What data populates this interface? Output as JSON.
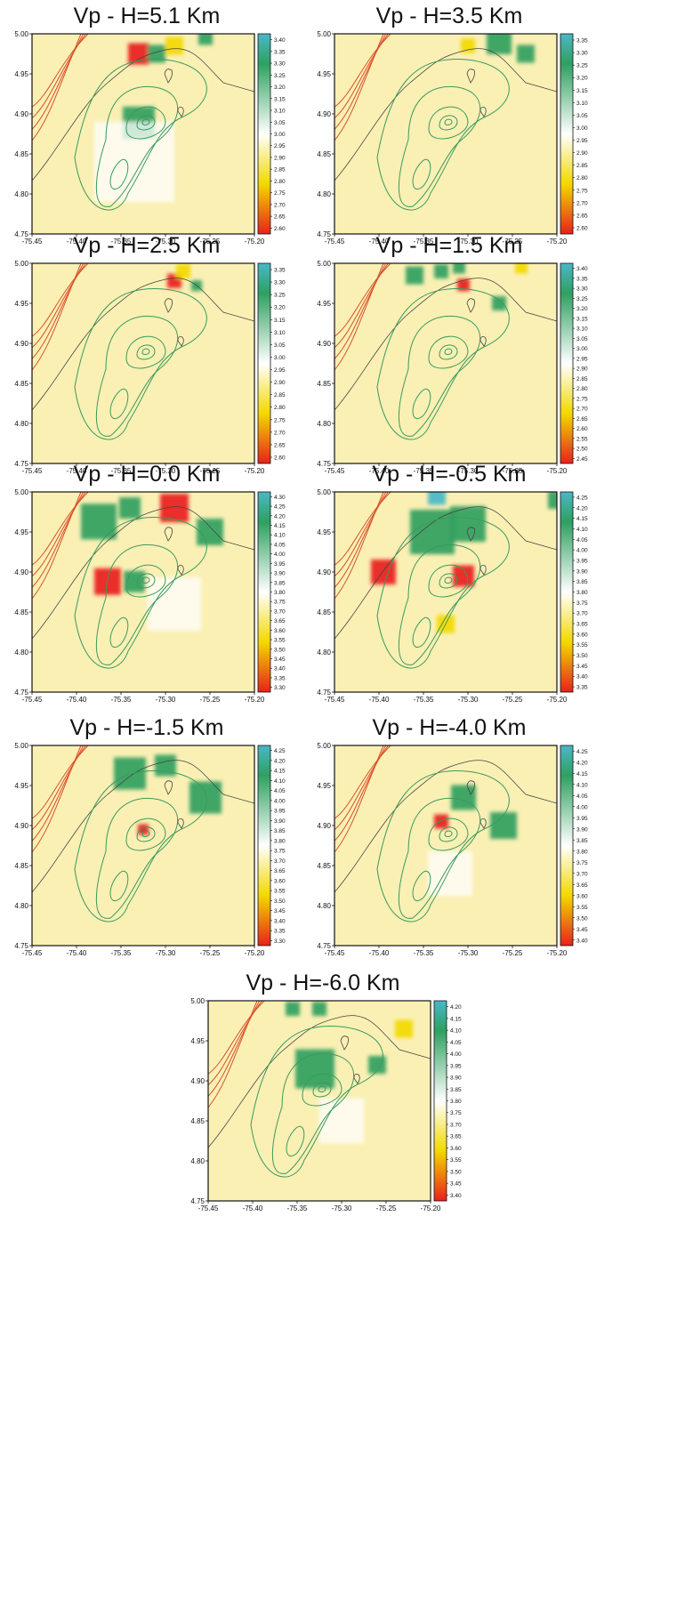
{
  "colors": {
    "low": "#e8211c",
    "mid_low": "#f2d900",
    "pale": "#faf0b4",
    "neutral": "#ffffff",
    "high": "#2fa060",
    "top": "#4bb7c8",
    "contour_green": "#3a9a5e",
    "contour_red": "#d9502c",
    "coastline": "#444444",
    "frame": "#111111"
  },
  "chart_data": [
    {
      "type": "heatmap",
      "title": "Vp - H=5.1 Km",
      "x_ticks": [
        "-75.45",
        "-75.40",
        "-75.35",
        "-75.30",
        "-75.25",
        "-75.20"
      ],
      "y_ticks": [
        "4.75",
        "4.80",
        "4.85",
        "4.90",
        "4.95",
        "5.00"
      ],
      "xlim": [
        -75.45,
        -75.2
      ],
      "ylim": [
        4.75,
        5.0
      ],
      "colorbar": [
        "3.40",
        "3.35",
        "3.30",
        "3.25",
        "3.20",
        "3.15",
        "3.10",
        "3.05",
        "3.00",
        "2.95",
        "2.90",
        "2.85",
        "2.80",
        "2.75",
        "2.70",
        "2.65",
        "2.60"
      ],
      "anomalies": [
        {
          "lon": -75.33,
          "lat": 4.889,
          "r": 0.018,
          "level": "high"
        },
        {
          "lon": -75.33,
          "lat": 4.975,
          "r": 0.012,
          "level": "low"
        },
        {
          "lon": -75.31,
          "lat": 4.975,
          "r": 0.01,
          "level": "high"
        },
        {
          "lon": -75.29,
          "lat": 4.985,
          "r": 0.01,
          "level": "mid_low"
        },
        {
          "lon": -75.255,
          "lat": 4.995,
          "r": 0.008,
          "level": "high"
        },
        {
          "lon": -75.335,
          "lat": 4.84,
          "r": 0.045,
          "level": "neutral"
        }
      ]
    },
    {
      "type": "heatmap",
      "title": "Vp - H=3.5 Km",
      "x_ticks": [
        "-75.45",
        "-75.40",
        "-75.35",
        "-75.30",
        "-75.25",
        "-75.20"
      ],
      "y_ticks": [
        "4.75",
        "4.80",
        "4.85",
        "4.90",
        "4.95",
        "5.00"
      ],
      "xlim": [
        -75.45,
        -75.2
      ],
      "ylim": [
        4.75,
        5.0
      ],
      "colorbar": [
        "3.35",
        "3.30",
        "3.25",
        "3.20",
        "3.15",
        "3.10",
        "3.05",
        "3.00",
        "2.95",
        "2.90",
        "2.85",
        "2.80",
        "2.75",
        "2.70",
        "2.65",
        "2.60"
      ],
      "anomalies": [
        {
          "lon": -75.265,
          "lat": 4.99,
          "r": 0.014,
          "level": "high"
        },
        {
          "lon": -75.235,
          "lat": 4.975,
          "r": 0.01,
          "level": "high"
        },
        {
          "lon": -75.3,
          "lat": 4.985,
          "r": 0.008,
          "level": "mid_low"
        }
      ]
    },
    {
      "type": "heatmap",
      "title": "Vp - H=2.5 Km",
      "x_ticks": [
        "-75.45",
        "-75.40",
        "-75.35",
        "-75.30",
        "-75.25",
        "-75.20"
      ],
      "y_ticks": [
        "4.75",
        "4.80",
        "4.85",
        "4.90",
        "4.95",
        "5.00"
      ],
      "xlim": [
        -75.45,
        -75.2
      ],
      "ylim": [
        4.75,
        5.0
      ],
      "colorbar": [
        "3.35",
        "3.30",
        "3.25",
        "3.20",
        "3.15",
        "3.10",
        "3.05",
        "3.00",
        "2.95",
        "2.90",
        "2.85",
        "2.80",
        "2.75",
        "2.70",
        "2.65",
        "2.60"
      ],
      "anomalies": [
        {
          "lon": -75.29,
          "lat": 4.978,
          "r": 0.008,
          "level": "low"
        },
        {
          "lon": -75.28,
          "lat": 4.99,
          "r": 0.008,
          "level": "mid_low"
        },
        {
          "lon": -75.265,
          "lat": 4.972,
          "r": 0.006,
          "level": "high"
        }
      ]
    },
    {
      "type": "heatmap",
      "title": "Vp - H=1.5 Km",
      "x_ticks": [
        "-75.45",
        "-75.40",
        "-75.35",
        "-75.30",
        "-75.25",
        "-75.20"
      ],
      "y_ticks": [
        "4.75",
        "4.80",
        "4.85",
        "4.90",
        "4.95",
        "5.00"
      ],
      "xlim": [
        -75.45,
        -75.2
      ],
      "ylim": [
        4.75,
        5.0
      ],
      "colorbar": [
        "3.40",
        "3.35",
        "3.30",
        "3.25",
        "3.20",
        "3.15",
        "3.10",
        "3.05",
        "3.00",
        "2.95",
        "2.90",
        "2.85",
        "2.80",
        "2.75",
        "2.70",
        "2.65",
        "2.60",
        "2.55",
        "2.50",
        "2.45"
      ],
      "anomalies": [
        {
          "lon": -75.36,
          "lat": 4.985,
          "r": 0.01,
          "level": "high"
        },
        {
          "lon": -75.33,
          "lat": 4.99,
          "r": 0.008,
          "level": "high"
        },
        {
          "lon": -75.305,
          "lat": 4.973,
          "r": 0.007,
          "level": "low"
        },
        {
          "lon": -75.265,
          "lat": 4.95,
          "r": 0.008,
          "level": "high"
        },
        {
          "lon": -75.24,
          "lat": 4.995,
          "r": 0.007,
          "level": "mid_low"
        },
        {
          "lon": -75.31,
          "lat": 4.995,
          "r": 0.007,
          "level": "high"
        }
      ]
    },
    {
      "type": "heatmap",
      "title": "Vp - H=0.0 Km",
      "x_ticks": [
        "-75.45",
        "-75.40",
        "-75.35",
        "-75.30",
        "-75.25",
        "-75.20"
      ],
      "y_ticks": [
        "4.75",
        "4.80",
        "4.85",
        "4.90",
        "4.95",
        "5.00"
      ],
      "xlim": [
        -75.45,
        -75.2
      ],
      "ylim": [
        4.75,
        5.0
      ],
      "colorbar": [
        "4.30",
        "4.25",
        "4.20",
        "4.15",
        "4.10",
        "4.05",
        "4.00",
        "3.95",
        "3.90",
        "3.85",
        "3.80",
        "3.75",
        "3.70",
        "3.65",
        "3.60",
        "3.55",
        "3.50",
        "3.45",
        "3.40",
        "3.35",
        "3.30"
      ],
      "anomalies": [
        {
          "lon": -75.375,
          "lat": 4.963,
          "r": 0.02,
          "level": "high"
        },
        {
          "lon": -75.34,
          "lat": 4.98,
          "r": 0.012,
          "level": "high"
        },
        {
          "lon": -75.29,
          "lat": 4.98,
          "r": 0.016,
          "level": "low"
        },
        {
          "lon": -75.25,
          "lat": 4.95,
          "r": 0.015,
          "level": "high"
        },
        {
          "lon": -75.365,
          "lat": 4.888,
          "r": 0.015,
          "level": "low"
        },
        {
          "lon": -75.335,
          "lat": 4.888,
          "r": 0.012,
          "level": "high"
        },
        {
          "lon": -75.29,
          "lat": 4.86,
          "r": 0.03,
          "level": "neutral"
        }
      ]
    },
    {
      "type": "heatmap",
      "title": "Vp - H=-0.5 Km",
      "x_ticks": [
        "-75.45",
        "-75.40",
        "-75.35",
        "-75.30",
        "-75.25",
        "-75.20"
      ],
      "y_ticks": [
        "4.75",
        "4.80",
        "4.85",
        "4.90",
        "4.95",
        "5.00"
      ],
      "xlim": [
        -75.45,
        -75.2
      ],
      "ylim": [
        4.75,
        5.0
      ],
      "colorbar": [
        "4.25",
        "4.20",
        "4.15",
        "4.10",
        "4.05",
        "4.00",
        "3.95",
        "3.90",
        "3.85",
        "3.80",
        "3.75",
        "3.70",
        "3.65",
        "3.60",
        "3.55",
        "3.50",
        "3.45",
        "3.40",
        "3.35"
      ],
      "anomalies": [
        {
          "lon": -75.34,
          "lat": 4.95,
          "r": 0.025,
          "level": "high"
        },
        {
          "lon": -75.3,
          "lat": 4.96,
          "r": 0.02,
          "level": "high"
        },
        {
          "lon": -75.395,
          "lat": 4.9,
          "r": 0.014,
          "level": "low"
        },
        {
          "lon": -75.305,
          "lat": 4.895,
          "r": 0.012,
          "level": "low"
        },
        {
          "lon": -75.325,
          "lat": 4.835,
          "r": 0.01,
          "level": "mid_low"
        },
        {
          "lon": -75.2,
          "lat": 4.99,
          "r": 0.01,
          "level": "high"
        },
        {
          "lon": -75.335,
          "lat": 4.995,
          "r": 0.01,
          "level": "top"
        }
      ]
    },
    {
      "type": "heatmap",
      "title": "Vp - H=-1.5 Km",
      "x_ticks": [
        "-75.45",
        "-75.40",
        "-75.35",
        "-75.30",
        "-75.25",
        "-75.20"
      ],
      "y_ticks": [
        "4.75",
        "4.80",
        "4.85",
        "4.90",
        "4.95",
        "5.00"
      ],
      "xlim": [
        -75.45,
        -75.2
      ],
      "ylim": [
        4.75,
        5.0
      ],
      "colorbar": [
        "4.25",
        "4.20",
        "4.15",
        "4.10",
        "4.05",
        "4.00",
        "3.95",
        "3.90",
        "3.85",
        "3.80",
        "3.75",
        "3.70",
        "3.65",
        "3.60",
        "3.55",
        "3.50",
        "3.45",
        "3.40",
        "3.35",
        "3.30"
      ],
      "anomalies": [
        {
          "lon": -75.34,
          "lat": 4.965,
          "r": 0.018,
          "level": "high"
        },
        {
          "lon": -75.3,
          "lat": 4.975,
          "r": 0.012,
          "level": "high"
        },
        {
          "lon": -75.255,
          "lat": 4.935,
          "r": 0.018,
          "level": "high"
        },
        {
          "lon": -75.325,
          "lat": 4.895,
          "r": 0.006,
          "level": "low"
        }
      ]
    },
    {
      "type": "heatmap",
      "title": "Vp - H=-4.0 Km",
      "x_ticks": [
        "-75.45",
        "-75.40",
        "-75.35",
        "-75.30",
        "-75.25",
        "-75.20"
      ],
      "y_ticks": [
        "4.75",
        "4.80",
        "4.85",
        "4.90",
        "4.95",
        "5.00"
      ],
      "xlim": [
        -75.45,
        -75.2
      ],
      "ylim": [
        4.75,
        5.0
      ],
      "colorbar": [
        "4.25",
        "4.20",
        "4.15",
        "4.10",
        "4.05",
        "4.00",
        "3.95",
        "3.90",
        "3.85",
        "3.80",
        "3.75",
        "3.70",
        "3.65",
        "3.60",
        "3.55",
        "3.50",
        "3.45",
        "3.40"
      ],
      "anomalies": [
        {
          "lon": -75.33,
          "lat": 4.905,
          "r": 0.008,
          "level": "low"
        },
        {
          "lon": -75.305,
          "lat": 4.935,
          "r": 0.014,
          "level": "high"
        },
        {
          "lon": -75.26,
          "lat": 4.9,
          "r": 0.015,
          "level": "high"
        },
        {
          "lon": -75.32,
          "lat": 4.84,
          "r": 0.025,
          "level": "neutral"
        }
      ]
    },
    {
      "type": "heatmap",
      "title": "Vp - H=-6.0 Km",
      "x_ticks": [
        "-75.45",
        "-75.40",
        "-75.35",
        "-75.30",
        "-75.25",
        "-75.20"
      ],
      "y_ticks": [
        "4.75",
        "4.80",
        "4.85",
        "4.90",
        "4.95",
        "5.00"
      ],
      "xlim": [
        -75.45,
        -75.2
      ],
      "ylim": [
        4.75,
        5.0
      ],
      "colorbar": [
        "4.20",
        "4.15",
        "4.10",
        "4.05",
        "4.00",
        "3.95",
        "3.90",
        "3.85",
        "3.80",
        "3.75",
        "3.70",
        "3.65",
        "3.60",
        "3.55",
        "3.50",
        "3.45",
        "3.40"
      ],
      "anomalies": [
        {
          "lon": -75.33,
          "lat": 4.915,
          "r": 0.022,
          "level": "high"
        },
        {
          "lon": -75.355,
          "lat": 4.99,
          "r": 0.008,
          "level": "high"
        },
        {
          "lon": -75.325,
          "lat": 4.99,
          "r": 0.008,
          "level": "high"
        },
        {
          "lon": -75.26,
          "lat": 4.92,
          "r": 0.01,
          "level": "high"
        },
        {
          "lon": -75.23,
          "lat": 4.965,
          "r": 0.01,
          "level": "mid_low"
        },
        {
          "lon": -75.3,
          "lat": 4.85,
          "r": 0.025,
          "level": "neutral"
        }
      ]
    }
  ]
}
